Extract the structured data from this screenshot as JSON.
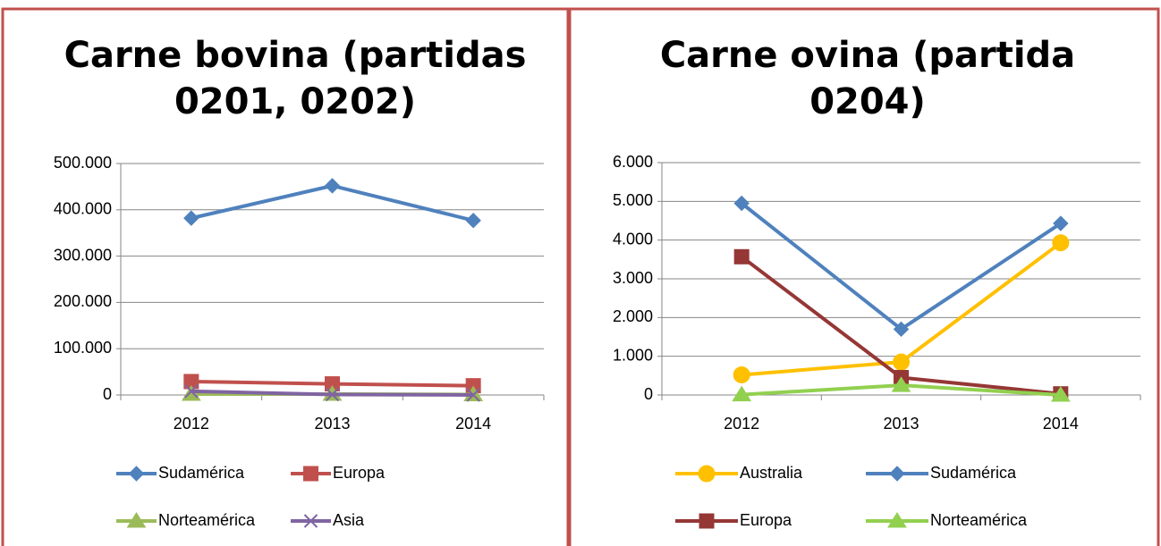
{
  "chart_data": [
    {
      "type": "line",
      "title": "Carne bovina (partidas 0201, 0202)",
      "categories": [
        "2012",
        "2013",
        "2014"
      ],
      "ylim": [
        0,
        500000
      ],
      "yticks": [
        0,
        {
          "value": 100000,
          "label": "100.000"
        },
        {
          "value": 200000,
          "label": "200.000"
        },
        {
          "value": 300000,
          "label": "300.000"
        },
        {
          "value": 400000,
          "label": "400.000"
        },
        {
          "value": 500000,
          "label": "500.000"
        }
      ],
      "grid": true,
      "legend": "bottom",
      "series": [
        {
          "name": "Sudamérica",
          "color": "#4f81bd",
          "marker": "diamond",
          "values": [
            382000,
            452000,
            377000
          ]
        },
        {
          "name": "Europa",
          "color": "#c0504d",
          "marker": "square",
          "values": [
            29000,
            24000,
            20000
          ]
        },
        {
          "name": "Norteamérica",
          "color": "#9bbb59",
          "marker": "triangle",
          "values": [
            2000,
            2000,
            1000
          ]
        },
        {
          "name": "Asia",
          "color": "#8064a2",
          "marker": "x",
          "values": [
            8000,
            1000,
            0
          ]
        }
      ]
    },
    {
      "type": "line",
      "title": "Carne ovina (partida 0204)",
      "categories": [
        "2012",
        "2013",
        "2014"
      ],
      "ylim": [
        0,
        6000
      ],
      "yticks": [
        0,
        {
          "value": 1000,
          "label": "1.000"
        },
        {
          "value": 2000,
          "label": "2.000"
        },
        {
          "value": 3000,
          "label": "3.000"
        },
        {
          "value": 4000,
          "label": "4.000"
        },
        {
          "value": 5000,
          "label": "5.000"
        },
        {
          "value": 6000,
          "label": "6.000"
        }
      ],
      "grid": true,
      "legend": "bottom",
      "series": [
        {
          "name": "Australia",
          "color": "#ffc000",
          "marker": "circle",
          "values": [
            520,
            850,
            3930
          ]
        },
        {
          "name": "Sudamérica",
          "color": "#4f81bd",
          "marker": "diamond",
          "values": [
            4950,
            1700,
            4430
          ]
        },
        {
          "name": "Europa",
          "color": "#953735",
          "marker": "square",
          "values": [
            3570,
            450,
            30
          ]
        },
        {
          "name": "Norteamérica",
          "color": "#92d050",
          "marker": "triangle",
          "values": [
            10,
            250,
            0
          ]
        }
      ]
    }
  ]
}
